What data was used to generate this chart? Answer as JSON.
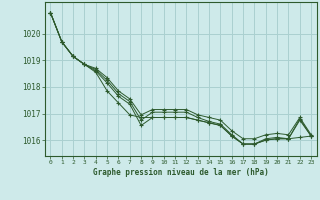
{
  "title": "Graphe pression niveau de la mer (hPa)",
  "background_color": "#ceeaea",
  "grid_color": "#aad0d0",
  "line_color": "#2d5a2d",
  "marker_color": "#2d5a2d",
  "xlim": [
    -0.5,
    23.5
  ],
  "ylim": [
    1015.4,
    1021.2
  ],
  "yticks": [
    1016,
    1017,
    1018,
    1019,
    1020
  ],
  "xticks": [
    0,
    1,
    2,
    3,
    4,
    5,
    6,
    7,
    8,
    9,
    10,
    11,
    12,
    13,
    14,
    15,
    16,
    17,
    18,
    19,
    20,
    21,
    22,
    23
  ],
  "series": [
    [
      1020.8,
      1019.7,
      1019.15,
      1018.85,
      1018.55,
      1017.85,
      1017.4,
      1016.95,
      1016.85,
      1016.85,
      1016.85,
      1016.85,
      1016.85,
      1016.75,
      1016.65,
      1016.55,
      1016.15,
      1015.85,
      1015.85,
      1016.0,
      1016.05,
      1016.05,
      1016.1,
      1016.15
    ],
    [
      1020.8,
      1019.7,
      1019.15,
      1018.85,
      1018.6,
      1018.15,
      1017.65,
      1017.35,
      1016.55,
      1016.85,
      1016.85,
      1016.85,
      1016.85,
      1016.75,
      1016.65,
      1016.55,
      1016.15,
      1015.85,
      1015.85,
      1016.0,
      1016.05,
      1016.05,
      1016.75,
      1016.15
    ],
    [
      1020.8,
      1019.7,
      1019.15,
      1018.85,
      1018.65,
      1018.25,
      1017.75,
      1017.45,
      1016.75,
      1017.05,
      1017.05,
      1017.05,
      1017.05,
      1016.85,
      1016.7,
      1016.6,
      1016.2,
      1015.85,
      1015.85,
      1016.05,
      1016.1,
      1016.05,
      1016.8,
      1016.15
    ],
    [
      1020.8,
      1019.7,
      1019.15,
      1018.85,
      1018.7,
      1018.35,
      1017.85,
      1017.55,
      1016.95,
      1017.15,
      1017.15,
      1017.15,
      1017.15,
      1016.95,
      1016.85,
      1016.75,
      1016.35,
      1016.05,
      1016.05,
      1016.2,
      1016.25,
      1016.2,
      1016.85,
      1016.2
    ]
  ]
}
